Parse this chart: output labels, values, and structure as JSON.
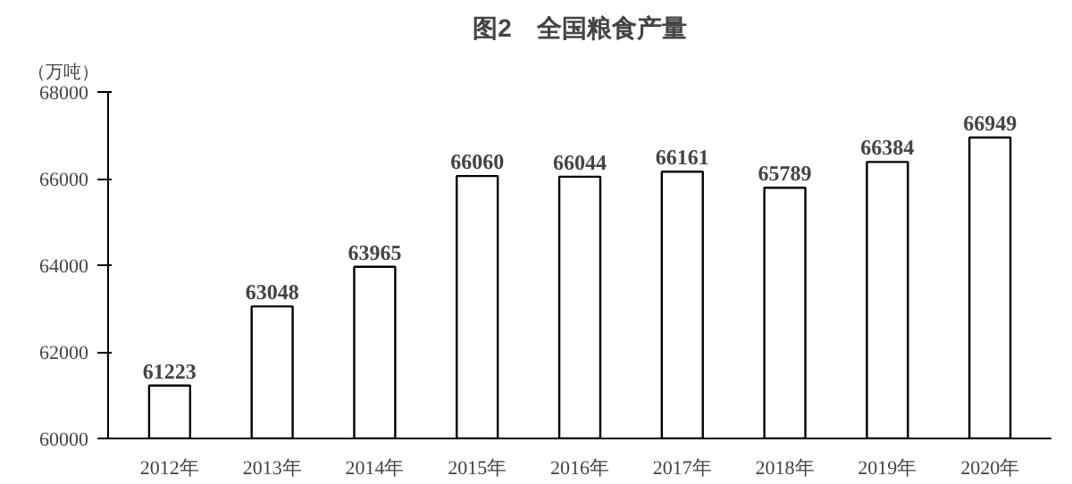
{
  "chart_data": {
    "type": "bar",
    "title": "图2　全国粮食产量",
    "ylabel": "（万吨）",
    "categories": [
      "2012年",
      "2013年",
      "2014年",
      "2015年",
      "2016年",
      "2017年",
      "2018年",
      "2019年",
      "2020年"
    ],
    "values": [
      61223,
      63048,
      63965,
      66060,
      66044,
      66161,
      65789,
      66384,
      66949
    ],
    "color": "#ffffff",
    "ylim": [
      60000,
      68000
    ],
    "yticks": [
      60000,
      62000,
      64000,
      66000,
      68000
    ],
    "data_labels": true,
    "grid": false
  }
}
